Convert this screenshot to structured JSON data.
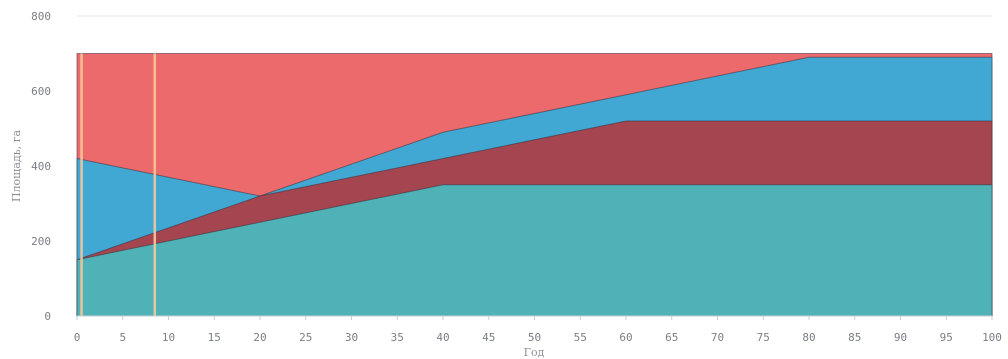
{
  "chart_data": {
    "type": "area",
    "title": "",
    "xlabel": "Год",
    "ylabel": "Площадь, га",
    "xlim": [
      0,
      100
    ],
    "ylim": [
      0,
      800
    ],
    "xticks": [
      0,
      5,
      10,
      15,
      20,
      25,
      30,
      35,
      40,
      45,
      50,
      55,
      60,
      65,
      70,
      75,
      80,
      85,
      90,
      95,
      100
    ],
    "yticks": [
      0,
      200,
      400,
      600,
      800
    ],
    "grid": true,
    "legend": "none",
    "series": [
      {
        "color": "#4fb2b6",
        "x": [
          0,
          40,
          100
        ],
        "y": [
          150,
          350,
          350
        ]
      },
      {
        "color": "#a54550",
        "x": [
          0,
          20,
          40,
          60,
          100
        ],
        "y": [
          150,
          320,
          420,
          520,
          520
        ]
      },
      {
        "color": "#41a8d4",
        "x": [
          0,
          20,
          40,
          80,
          100
        ],
        "y": [
          420,
          320,
          490,
          690,
          690
        ]
      },
      {
        "color": "#ec6a6c",
        "x": [
          0,
          100
        ],
        "y": [
          700,
          700
        ]
      }
    ],
    "annotations": [
      {
        "type": "vertical-line",
        "x": 0.5,
        "color": "#f6c89a"
      },
      {
        "type": "vertical-line",
        "x": 8.5,
        "color": "#f6c89a"
      }
    ]
  }
}
